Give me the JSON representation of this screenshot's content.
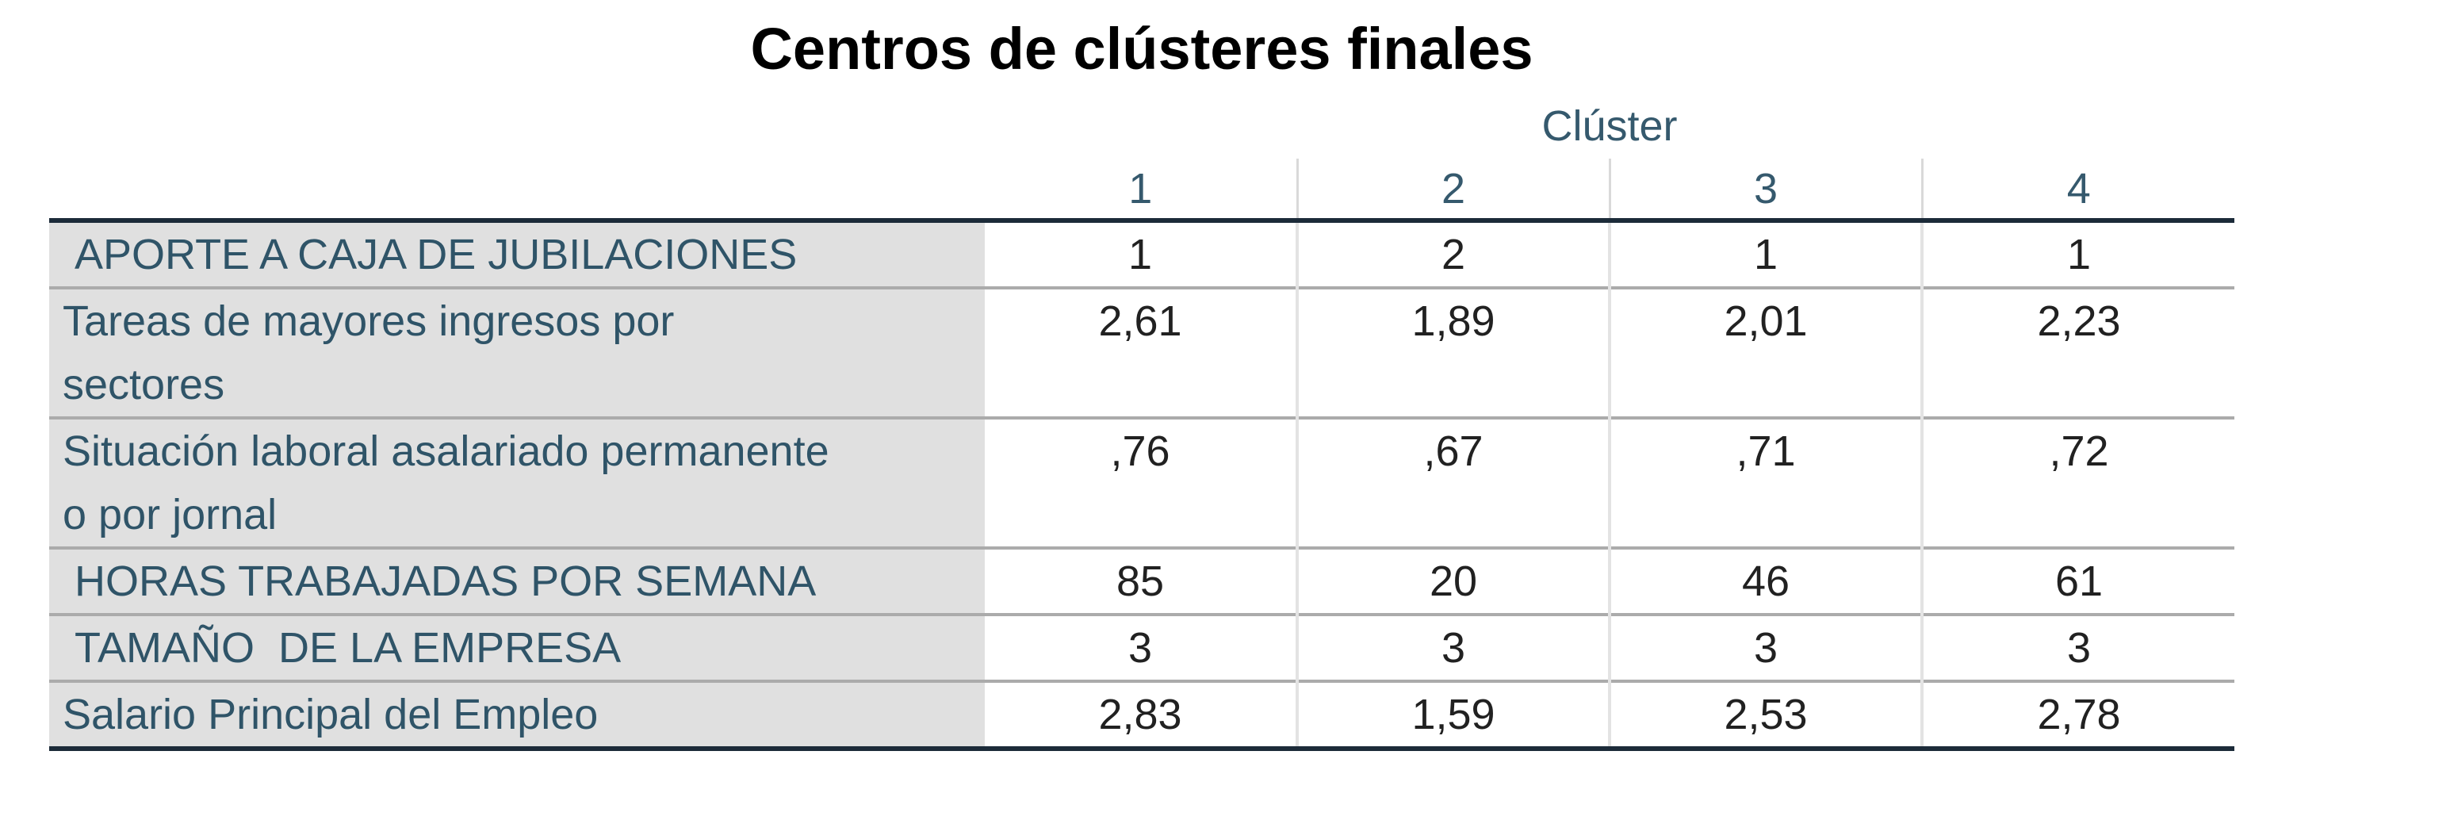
{
  "title": "Centros de clústeres finales",
  "table": {
    "spanner": "Clúster",
    "columns": [
      "1",
      "2",
      "3",
      "4"
    ],
    "rows": [
      {
        "label": " APORTE A CAJA DE JUBILACIONES",
        "values": [
          "1",
          "2",
          "1",
          "1"
        ]
      },
      {
        "label": "Tareas de mayores ingresos por\nsectores",
        "values": [
          "2,61",
          "1,89",
          "2,01",
          "2,23"
        ]
      },
      {
        "label": "Situación laboral asalariado permanente\no por jornal",
        "values": [
          ",76",
          ",67",
          ",71",
          ",72"
        ]
      },
      {
        "label": " HORAS TRABAJADAS POR SEMANA",
        "values": [
          "85",
          "20",
          "46",
          "61"
        ]
      },
      {
        "label": " TAMAÑO  DE LA EMPRESA",
        "values": [
          "3",
          "3",
          "3",
          "3"
        ]
      },
      {
        "label": "Salario Principal del Empleo",
        "values": [
          "2,83",
          "1,59",
          "2,53",
          "2,78"
        ]
      }
    ]
  },
  "colors": {
    "title_text": "#000000",
    "header_text": "#35596D",
    "label_text": "#2F5468",
    "value_text": "#212121",
    "label_background": "#E0E0E0",
    "heavy_rule": "#1C2B39",
    "row_rule": "#ABABAB",
    "column_rule": "#E3E3E3"
  }
}
